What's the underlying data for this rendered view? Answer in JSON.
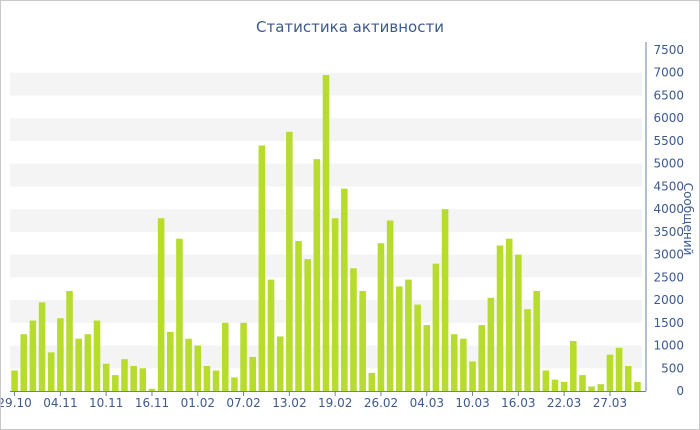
{
  "chart_data": {
    "type": "bar",
    "title": "Статистика активности",
    "xlabel": "",
    "ylabel": "Сообщений",
    "ylim": [
      0,
      7500
    ],
    "yticks": [
      0,
      500,
      1000,
      1500,
      2000,
      2500,
      3000,
      3500,
      4000,
      4500,
      5000,
      5500,
      6000,
      6500,
      7000,
      7500
    ],
    "xtick_labels": [
      "29.10",
      "04.11",
      "10.11",
      "16.11",
      "01.02",
      "07.02",
      "13.02",
      "19.02",
      "26.02",
      "04.03",
      "10.03",
      "16.03",
      "22.03",
      "27.03"
    ],
    "xtick_positions": [
      0,
      5,
      10,
      15,
      20,
      25,
      30,
      35,
      40,
      45,
      50,
      55,
      60,
      65
    ],
    "bar_color": "#b8dc2e",
    "grid": "alternating horizontal bands",
    "values": [
      450,
      1250,
      1550,
      1950,
      850,
      1600,
      2200,
      1150,
      1250,
      1550,
      600,
      350,
      700,
      550,
      500,
      50,
      3800,
      1300,
      3350,
      1150,
      1000,
      550,
      450,
      1500,
      300,
      1500,
      750,
      5400,
      2450,
      1200,
      5700,
      3300,
      2900,
      5100,
      6950,
      3800,
      4450,
      2700,
      2200,
      400,
      3250,
      3750,
      2300,
      2450,
      1900,
      1450,
      2800,
      4000,
      1250,
      1150,
      650,
      1450,
      2050,
      3200,
      3350,
      3000,
      1800,
      2200,
      450,
      250,
      200,
      1100,
      350,
      100,
      150,
      800,
      950,
      550,
      200
    ]
  }
}
